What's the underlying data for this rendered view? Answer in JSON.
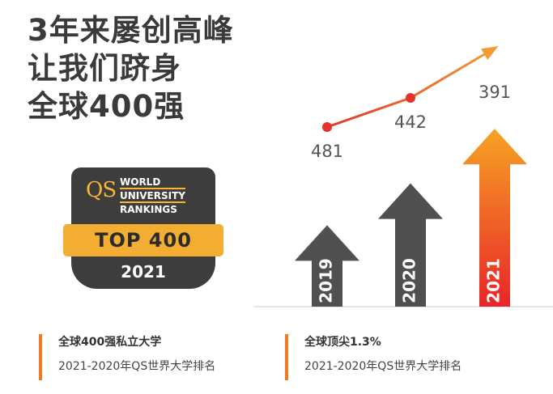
{
  "headline": {
    "line1": "3年来屡创高峰",
    "line2": "让我们跻身",
    "line3": "全球400强"
  },
  "badge": {
    "logo": "QS",
    "lines": [
      "WORLD",
      "UNIVERSITY",
      "RANKINGS"
    ],
    "ribbon": "TOP 400",
    "year": "2021"
  },
  "chart_data": {
    "type": "bar",
    "categories": [
      "2019",
      "2020",
      "2021"
    ],
    "values": [
      481,
      442,
      391
    ],
    "value_labels": [
      "481",
      "442",
      "391"
    ],
    "title": "",
    "xlabel": "",
    "ylabel": "",
    "trend_line": true,
    "colors": {
      "bar": "#505050",
      "highlight_top": "#f7a323",
      "highlight_bottom": "#e8262a",
      "line": "#e3342b",
      "arrow": "#f39a32",
      "axis": "#cccccc"
    }
  },
  "notes": [
    {
      "title": "全球400强私立大学",
      "subtitle": "2021-2020年QS世界大学排名"
    },
    {
      "title": "全球顶尖1.3%",
      "subtitle": "2021-2020年QS世界大学排名"
    }
  ]
}
